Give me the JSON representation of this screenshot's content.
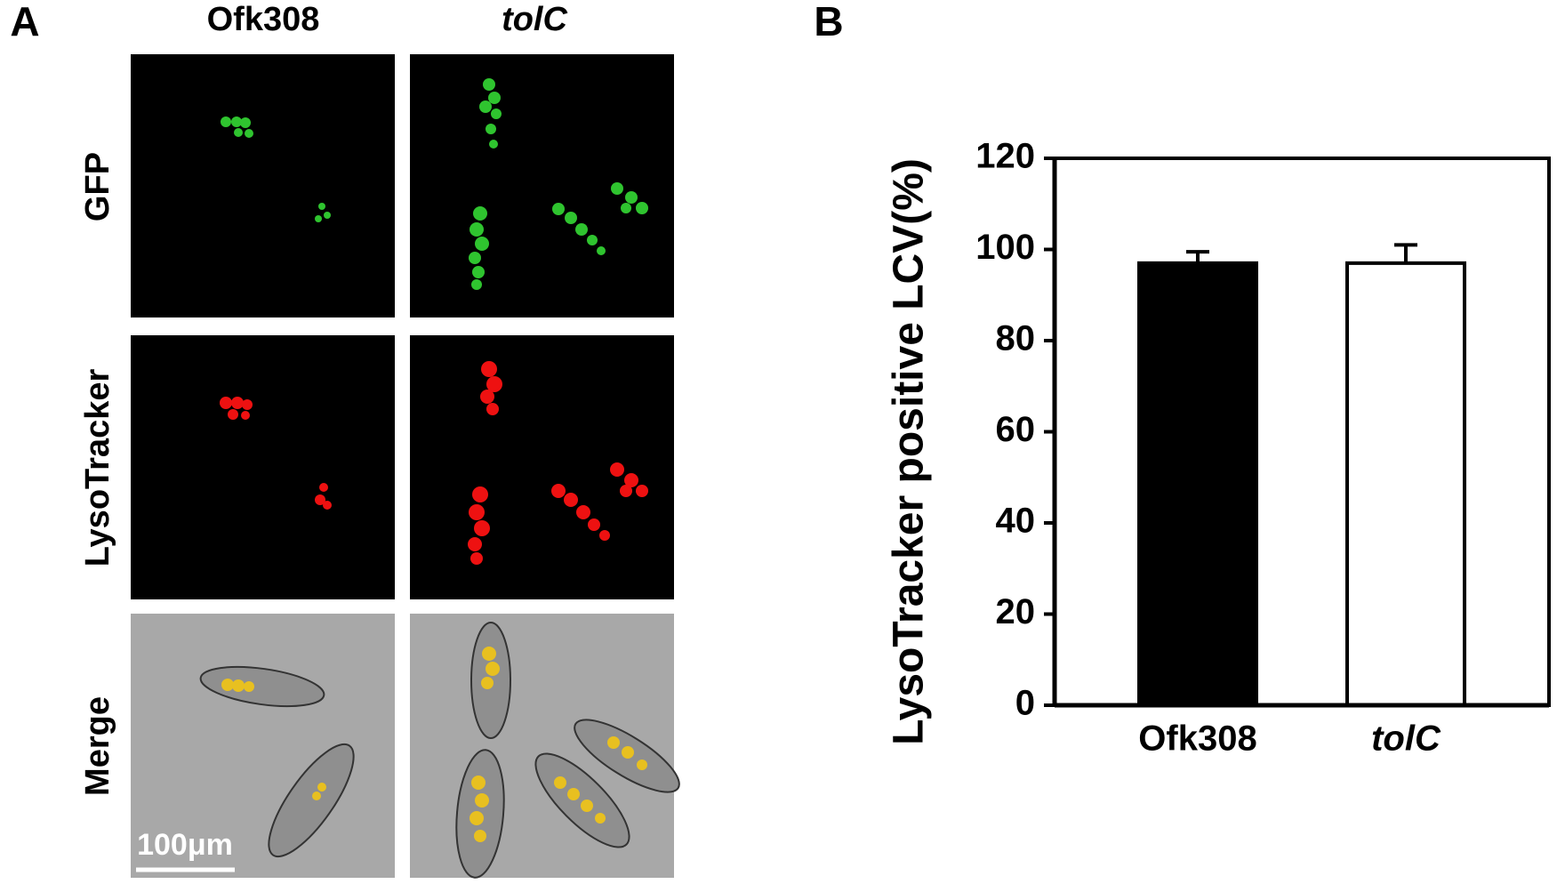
{
  "panel_a": {
    "label": "A",
    "columns": [
      "Ofk308",
      "tolC"
    ],
    "rows": [
      "GFP",
      "LysoTracker",
      "Merge"
    ],
    "scale_bar": "100μm"
  },
  "chart_data": {
    "type": "bar",
    "panel_label": "B",
    "ylabel": "LysoTracker positive LCV(%)",
    "categories": [
      "Ofk308",
      "tolC"
    ],
    "values": [
      97,
      97
    ],
    "errors": [
      2.5,
      4
    ],
    "colors": [
      "#000000",
      "#ffffff"
    ],
    "ylim": [
      0,
      120
    ],
    "yticks": [
      0,
      20,
      40,
      60,
      80,
      100,
      120
    ]
  }
}
